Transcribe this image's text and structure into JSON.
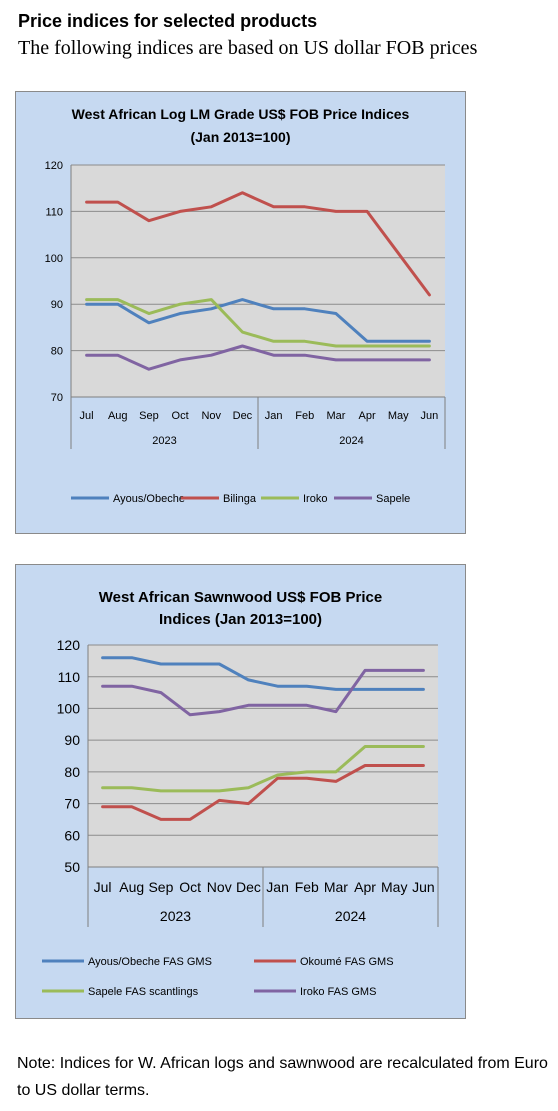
{
  "header": {
    "title": "Price indices for selected products",
    "subtitle": "The following indices are based on US dollar FOB prices"
  },
  "note": "Note: Indices for W. African logs and sawnwood are recalculated from Euro to US dollar terms.",
  "chart_data": [
    {
      "type": "line",
      "title_lines": [
        "West African Log LM Grade US$ FOB Price Indices",
        "(Jan 2013=100)"
      ],
      "categories": [
        "Jul",
        "Aug",
        "Sep",
        "Oct",
        "Nov",
        "Dec",
        "Jan",
        "Feb",
        "Mar",
        "Apr",
        "May",
        "Jun"
      ],
      "year_groups": [
        {
          "label": "2023",
          "start": 0,
          "end": 5
        },
        {
          "label": "2024",
          "start": 6,
          "end": 11
        }
      ],
      "ylim": [
        70,
        120
      ],
      "yticks": [
        70,
        80,
        90,
        100,
        110,
        120
      ],
      "grid": true,
      "legend_position": "bottom",
      "series": [
        {
          "name": "Ayous/Obeche",
          "color": "#4f81bd",
          "values": [
            90,
            90,
            86,
            88,
            89,
            91,
            89,
            89,
            88,
            82,
            82,
            82
          ]
        },
        {
          "name": "Bilinga",
          "color": "#c0504d",
          "values": [
            112,
            112,
            108,
            110,
            111,
            114,
            111,
            111,
            110,
            110,
            101,
            92
          ]
        },
        {
          "name": "Iroko",
          "color": "#9bbb59",
          "values": [
            91,
            91,
            88,
            90,
            91,
            84,
            82,
            82,
            81,
            81,
            81,
            81
          ]
        },
        {
          "name": "Sapele",
          "color": "#8064a2",
          "values": [
            79,
            79,
            76,
            78,
            79,
            81,
            79,
            79,
            78,
            78,
            78,
            78
          ]
        }
      ]
    },
    {
      "type": "line",
      "title_lines": [
        "West African Sawnwood US$ FOB Price",
        "Indices (Jan 2013=100)"
      ],
      "categories": [
        "Jul",
        "Aug",
        "Sep",
        "Oct",
        "Nov",
        "Dec",
        "Jan",
        "Feb",
        "Mar",
        "Apr",
        "May",
        "Jun"
      ],
      "year_groups": [
        {
          "label": "2023",
          "start": 0,
          "end": 5
        },
        {
          "label": "2024",
          "start": 6,
          "end": 11
        }
      ],
      "ylim": [
        50,
        120
      ],
      "yticks": [
        50,
        60,
        70,
        80,
        90,
        100,
        110,
        120
      ],
      "grid": true,
      "legend_position": "bottom",
      "series": [
        {
          "name": "Ayous/Obeche FAS GMS",
          "color": "#4f81bd",
          "values": [
            116,
            116,
            114,
            114,
            114,
            109,
            107,
            107,
            106,
            106,
            106,
            106
          ]
        },
        {
          "name": "Okoumé FAS GMS",
          "color": "#c0504d",
          "values": [
            69,
            69,
            65,
            65,
            71,
            70,
            78,
            78,
            77,
            82,
            82,
            82
          ]
        },
        {
          "name": "Sapele FAS scantlings",
          "color": "#9bbb59",
          "values": [
            75,
            75,
            74,
            74,
            74,
            75,
            79,
            80,
            80,
            88,
            88,
            88
          ]
        },
        {
          "name": "Iroko FAS GMS",
          "color": "#8064a2",
          "values": [
            107,
            107,
            105,
            98,
            99,
            101,
            101,
            101,
            99,
            112,
            112,
            112
          ]
        }
      ]
    }
  ]
}
